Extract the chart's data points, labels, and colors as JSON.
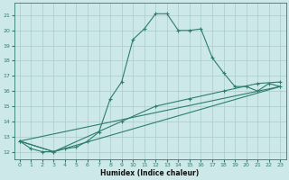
{
  "xlabel": "Humidex (Indice chaleur)",
  "background_color": "#cce8e8",
  "grid_color": "#aacccc",
  "line_color": "#2e7d6e",
  "xlim": [
    -0.5,
    23.5
  ],
  "ylim": [
    11.5,
    21.8
  ],
  "xticks": [
    0,
    1,
    2,
    3,
    4,
    5,
    6,
    7,
    8,
    9,
    10,
    11,
    12,
    13,
    14,
    15,
    16,
    17,
    18,
    19,
    20,
    21,
    22,
    23
  ],
  "yticks": [
    12,
    13,
    14,
    15,
    16,
    17,
    18,
    19,
    20,
    21
  ],
  "curve_x": [
    0,
    1,
    2,
    3,
    4,
    5,
    6,
    7,
    8,
    9,
    10,
    11,
    12,
    13,
    14,
    15,
    16,
    17,
    18,
    19,
    20,
    21,
    22,
    23
  ],
  "curve_y": [
    12.7,
    12.2,
    12.0,
    12.0,
    12.2,
    12.3,
    12.7,
    13.3,
    15.5,
    16.6,
    19.4,
    20.1,
    21.1,
    21.1,
    20.0,
    20.0,
    20.1,
    18.2,
    17.2,
    16.3,
    16.3,
    16.0,
    16.5,
    16.3
  ],
  "line1_x": [
    0,
    23
  ],
  "line1_y": [
    12.7,
    16.3
  ],
  "line2_x": [
    0,
    3,
    23
  ],
  "line2_y": [
    12.7,
    12.0,
    16.3
  ],
  "line3_x": [
    0,
    3,
    9,
    12,
    15,
    18,
    21,
    23
  ],
  "line3_y": [
    12.7,
    12.0,
    14.0,
    15.0,
    15.5,
    16.0,
    16.5,
    16.6
  ]
}
